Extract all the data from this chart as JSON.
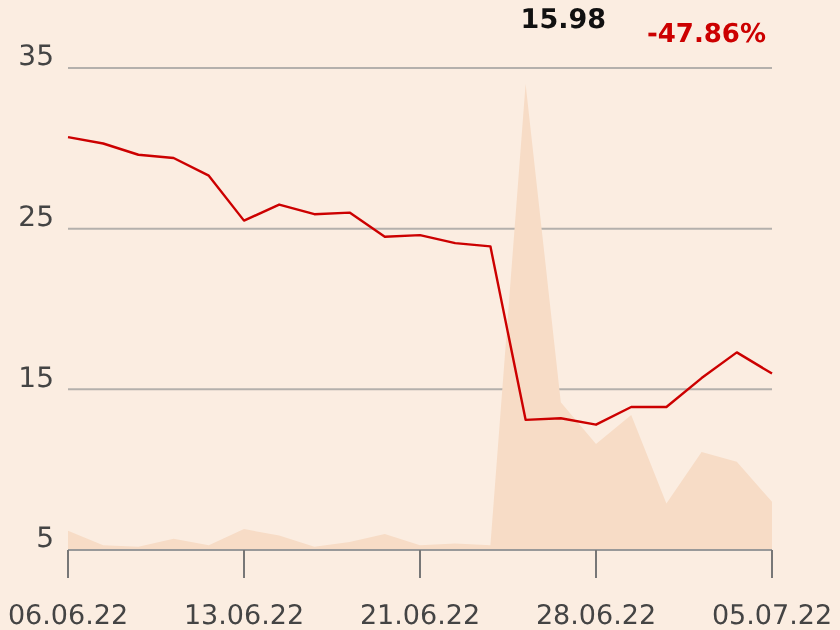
{
  "chart_data": {
    "type": "line",
    "annotations": [
      "15.98",
      "-47.86%"
    ],
    "categories": [
      "06.06.22",
      null,
      null,
      null,
      null,
      "13.06.22",
      null,
      null,
      null,
      null,
      "21.06.22",
      null,
      null,
      null,
      null,
      "28.06.22",
      null,
      null,
      null,
      null,
      "05.07.22"
    ],
    "series": [
      {
        "type": "area",
        "color": "#f7dcc6",
        "values": [
          6.2,
          5.3,
          5.2,
          5.7,
          5.3,
          6.3,
          5.9,
          5.2,
          5.5,
          6.0,
          5.3,
          5.4,
          5.3,
          34.0,
          14.2,
          11.6,
          13.4,
          7.9,
          11.1,
          10.5,
          8.0
        ]
      },
      {
        "color": "#cc0000",
        "values": [
          30.7,
          30.3,
          29.6,
          29.4,
          28.3,
          25.5,
          26.5,
          25.9,
          26.0,
          24.5,
          24.6,
          24.1,
          23.9,
          13.1,
          13.2,
          12.8,
          13.9,
          13.9,
          15.7,
          17.3,
          15.98
        ]
      }
    ],
    "ylim": [
      5,
      35
    ],
    "yticks": [
      5,
      15,
      25,
      35
    ],
    "grid": "y"
  }
}
